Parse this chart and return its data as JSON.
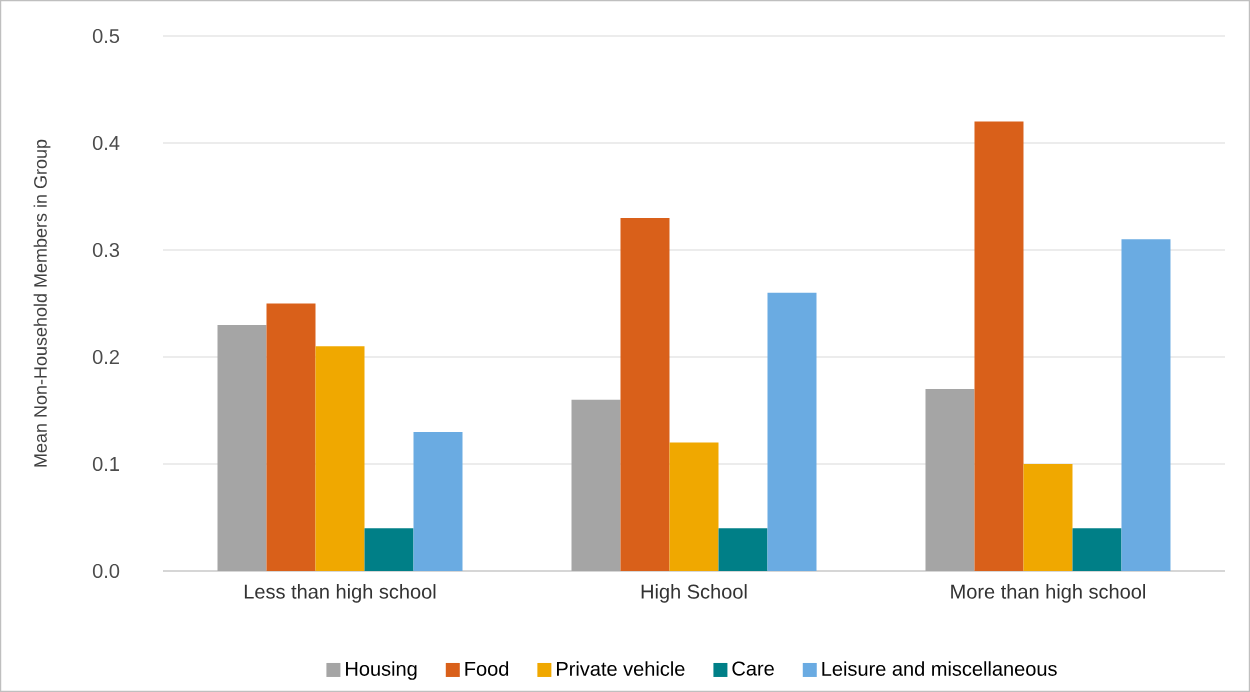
{
  "chart_data": {
    "type": "bar",
    "ylabel": "Mean Non-Household Members in Group",
    "categories": [
      "Less than high school",
      "High School",
      "More than high school"
    ],
    "series": [
      {
        "name": "Housing",
        "color": "#a5a5a5",
        "values": [
          0.23,
          0.16,
          0.17
        ]
      },
      {
        "name": "Food",
        "color": "#d9601a",
        "values": [
          0.25,
          0.33,
          0.42
        ]
      },
      {
        "name": "Private vehicle",
        "color": "#f0a800",
        "values": [
          0.21,
          0.12,
          0.1
        ]
      },
      {
        "name": "Care",
        "color": "#007f87",
        "values": [
          0.04,
          0.04,
          0.04
        ]
      },
      {
        "name": "Leisure and miscellaneous",
        "color": "#6aabe2",
        "values": [
          0.13,
          0.26,
          0.31
        ]
      }
    ],
    "ylim": [
      0,
      0.5
    ],
    "yticks": [
      {
        "value": 0,
        "label": "0.0"
      },
      0.1,
      0.2,
      0.3,
      0.4,
      0.5
    ],
    "grid": "y",
    "legend": "bottom"
  }
}
